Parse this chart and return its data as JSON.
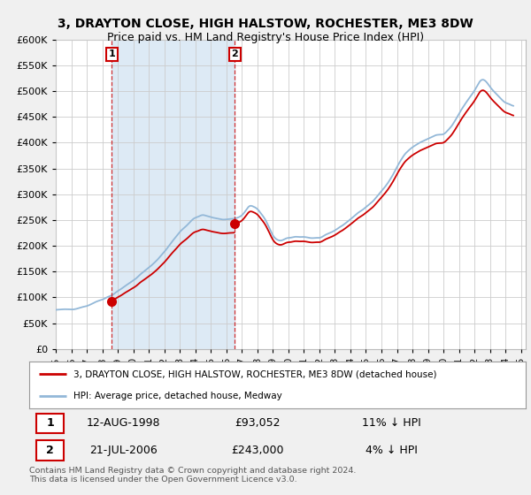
{
  "title": "3, DRAYTON CLOSE, HIGH HALSTOW, ROCHESTER, ME3 8DW",
  "subtitle": "Price paid vs. HM Land Registry's House Price Index (HPI)",
  "ylim": [
    0,
    600000
  ],
  "yticks": [
    0,
    50000,
    100000,
    150000,
    200000,
    250000,
    300000,
    350000,
    400000,
    450000,
    500000,
    550000,
    600000
  ],
  "bg_color": "#f0f0f0",
  "plot_bg_color": "#ffffff",
  "grid_color": "#cccccc",
  "hpi_color": "#93b8d8",
  "hpi_fill_color": "#ddeaf5",
  "price_color": "#cc0000",
  "shade_color": "#ddeaf5",
  "purchase1_date": 1998.62,
  "purchase1_price": 93052,
  "purchase1_label": "1",
  "purchase2_date": 2006.54,
  "purchase2_price": 243000,
  "purchase2_label": "2",
  "legend_line1": "3, DRAYTON CLOSE, HIGH HALSTOW, ROCHESTER, ME3 8DW (detached house)",
  "legend_line2": "HPI: Average price, detached house, Medway",
  "table_row1_date": "12-AUG-1998",
  "table_row1_price": "£93,052",
  "table_row1_note": "11% ↓ HPI",
  "table_row2_date": "21-JUL-2006",
  "table_row2_price": "£243,000",
  "table_row2_note": "4% ↓ HPI",
  "footer": "Contains HM Land Registry data © Crown copyright and database right 2024.\nThis data is licensed under the Open Government Licence v3.0.",
  "title_fontsize": 10,
  "subtitle_fontsize": 9
}
